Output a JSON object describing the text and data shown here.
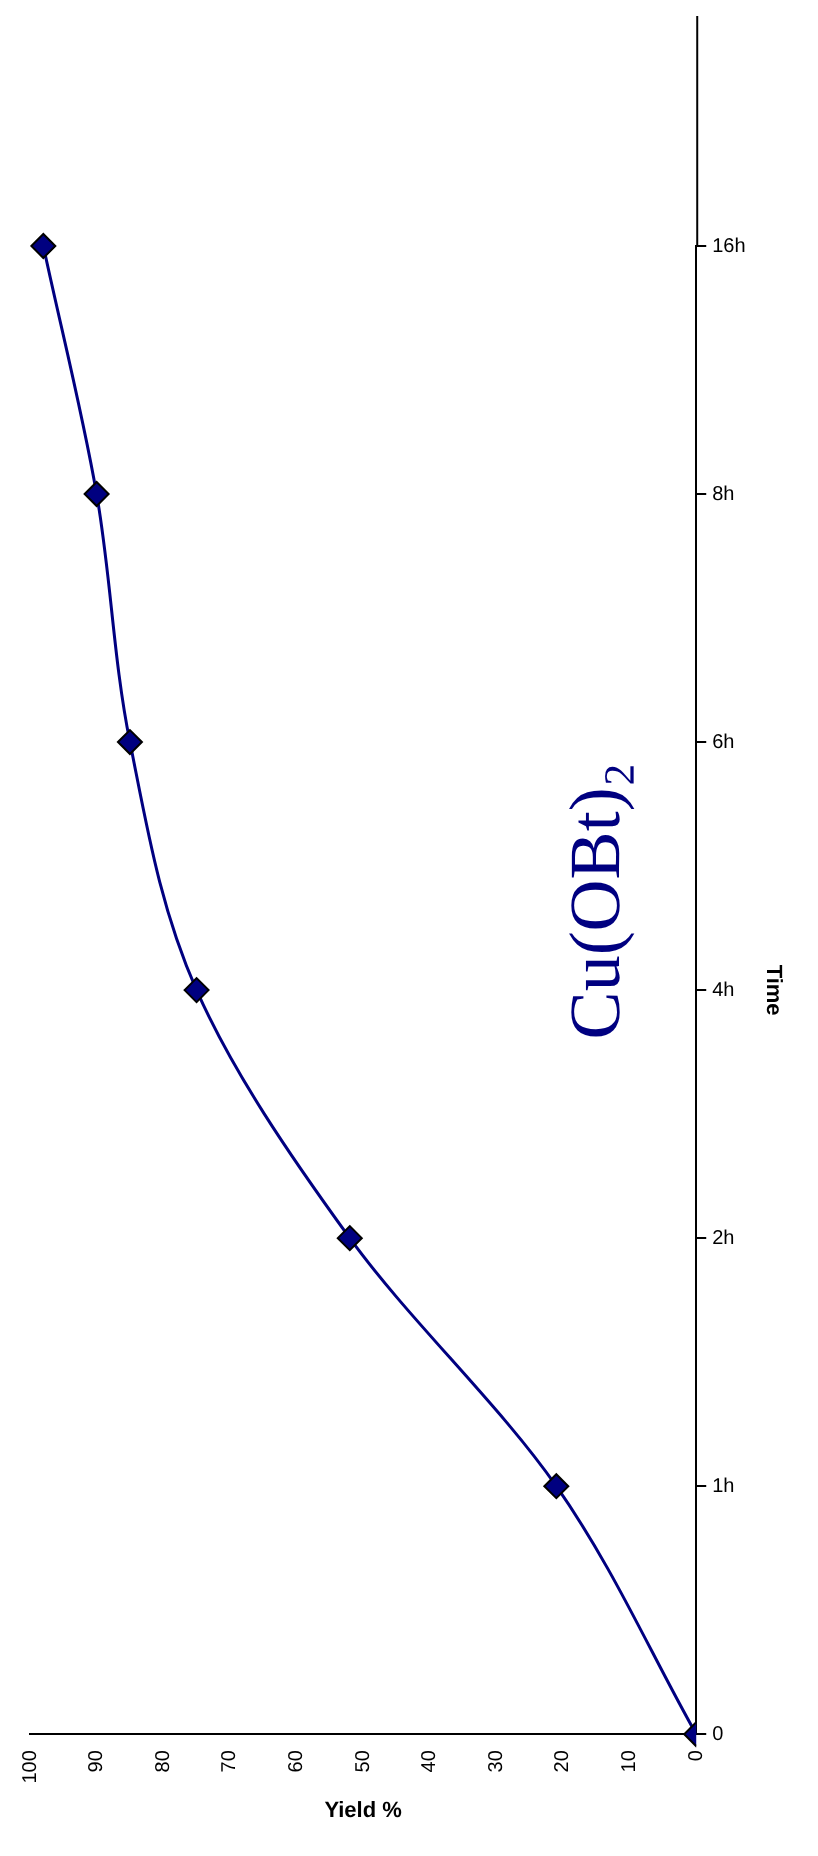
{
  "chart_data": {
    "type": "line",
    "orientation": "horizontal",
    "categories": [
      "16h",
      "8h",
      "6h",
      "4h",
      "2h",
      "1h",
      "0"
    ],
    "series": [
      {
        "color": "#000080",
        "values": [
          98,
          90,
          85,
          75,
          52,
          21,
          0
        ]
      }
    ],
    "xlabel": "Yield %",
    "ylabel": "Time",
    "xlim": [
      100,
      0
    ],
    "xticks": [
      0,
      10,
      20,
      30,
      40,
      50,
      60,
      70,
      80,
      90,
      100
    ],
    "annotations": [
      "Cu(OBt)₂"
    ],
    "marker": "diamond",
    "grid": false,
    "legend": false
  }
}
